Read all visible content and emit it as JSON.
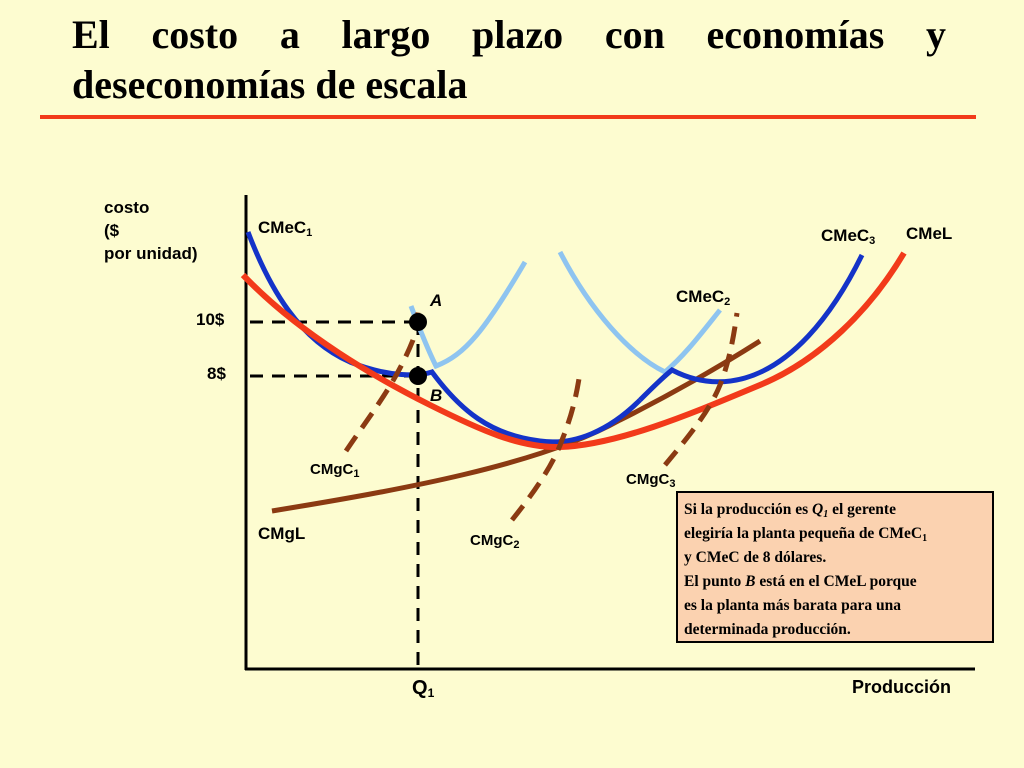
{
  "title": "El costo a largo plazo con economías y deseconomías de escala",
  "axes": {
    "y_label_lines": [
      "costo",
      "($",
      "por unidad)"
    ],
    "x_label": "Producción",
    "y_ticks": [
      {
        "value": 10,
        "label": "10$"
      },
      {
        "value": 8,
        "label": "8$"
      }
    ],
    "x_tick": {
      "label": "Q",
      "sub": "1"
    }
  },
  "points": [
    {
      "name": "A",
      "cost": 10
    },
    {
      "name": "B",
      "cost": 8
    }
  ],
  "curves": {
    "cmec1": {
      "label": "CMeC",
      "sub": "1",
      "color": "#1433c8"
    },
    "cmec2": {
      "label": "CMeC",
      "sub": "2",
      "color": "#8ec4f0"
    },
    "cmec3": {
      "label": "CMeC",
      "sub": "3",
      "color": "#1433c8"
    },
    "cmel": {
      "label": "CMeL",
      "color": "#f23a1a"
    },
    "cmgl": {
      "label": "CMgL",
      "color": "#8b3a12"
    },
    "cmgc1": {
      "label": "CMgC",
      "sub": "1",
      "color": "#8b3a12"
    },
    "cmgc2": {
      "label": "CMgC",
      "sub": "2",
      "color": "#8b3a12"
    },
    "cmgc3": {
      "label": "CMgC",
      "sub": "3",
      "color": "#8b3a12"
    }
  },
  "note": {
    "l1_a": "Si la producción es ",
    "l1_q": "Q",
    "l1_qsub": "1",
    "l1_b": " el gerente",
    "l2_a": "elegiría la planta pequeña de CMeC",
    "l2_sub": "1",
    "l3": "y CMeC de 8 dólares.",
    "l4_a": "El punto ",
    "l4_b": "B",
    "l4_c": " está en el CMeL porque",
    "l5": "es la planta más barata para una",
    "l6": "determinada producción."
  }
}
